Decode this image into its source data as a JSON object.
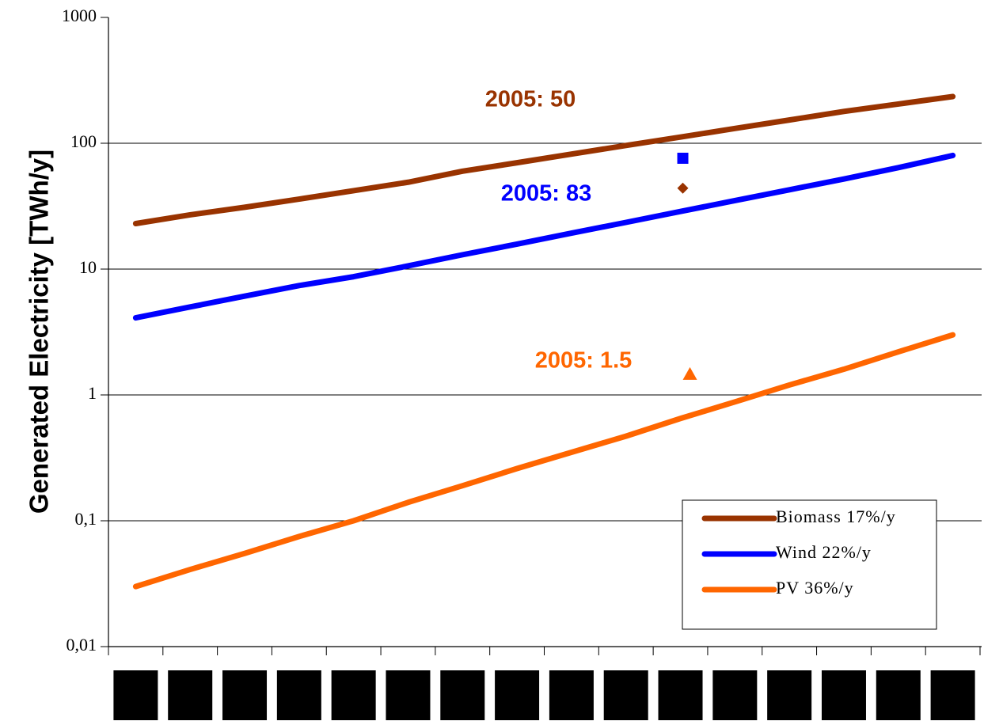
{
  "chart_data": {
    "type": "line",
    "y_label": "Generated Electricity [TWh/y]",
    "categories": [
      null,
      null,
      null,
      null,
      null,
      null,
      null,
      null,
      null,
      null,
      null,
      null,
      null,
      null,
      null,
      null
    ],
    "log_y": true,
    "grid": true,
    "legend": "lower right",
    "ylim": [
      0.01,
      1000
    ],
    "yticks": [
      {
        "value": 0.01,
        "label": "0,01"
      },
      {
        "value": 0.1,
        "label": "0,1"
      },
      1,
      10,
      100,
      1000
    ],
    "series": [
      {
        "name": "Biomass 17%/y",
        "color": "#993300",
        "values": [
          23,
          27,
          31,
          36,
          42,
          49,
          60,
          70,
          82,
          96,
          112,
          131,
          153,
          179,
          205,
          235
        ]
      },
      {
        "name": "Wind 22%/y",
        "color": "#0000ff",
        "values": [
          4.1,
          5.0,
          6.1,
          7.4,
          8.7,
          10.6,
          13,
          15.8,
          19.3,
          23.5,
          28.7,
          35,
          42.7,
          52,
          64,
          80
        ]
      },
      {
        "name": "PV 36%/y",
        "color": "#ff6600",
        "values": [
          0.03,
          0.041,
          0.055,
          0.075,
          0.1,
          0.14,
          0.19,
          0.26,
          0.35,
          0.47,
          0.65,
          0.88,
          1.2,
          1.6,
          2.2,
          3.0
        ]
      }
    ],
    "markers": [
      {
        "shape": "square",
        "color": "#0000ff",
        "values": [
          null,
          null,
          null,
          null,
          null,
          null,
          null,
          null,
          null,
          null,
          76,
          null,
          null,
          null,
          null,
          null
        ]
      },
      {
        "shape": "diamond",
        "color": "#993300",
        "values": [
          null,
          null,
          null,
          null,
          null,
          null,
          null,
          null,
          null,
          null,
          44,
          null,
          null,
          null,
          null,
          null
        ]
      },
      {
        "shape": "triangle",
        "color": "#ff6600",
        "values": [
          null,
          null,
          null,
          null,
          null,
          null,
          null,
          null,
          null,
          null,
          1.46,
          null,
          null,
          null,
          null,
          null
        ]
      }
    ],
    "annotations": [
      {
        "text": "2005: 50",
        "color": "#993300"
      },
      {
        "text": "2005: 83",
        "color": "#0000ff"
      },
      {
        "text": "2005: 1.5",
        "color": "#ff6600"
      }
    ]
  }
}
